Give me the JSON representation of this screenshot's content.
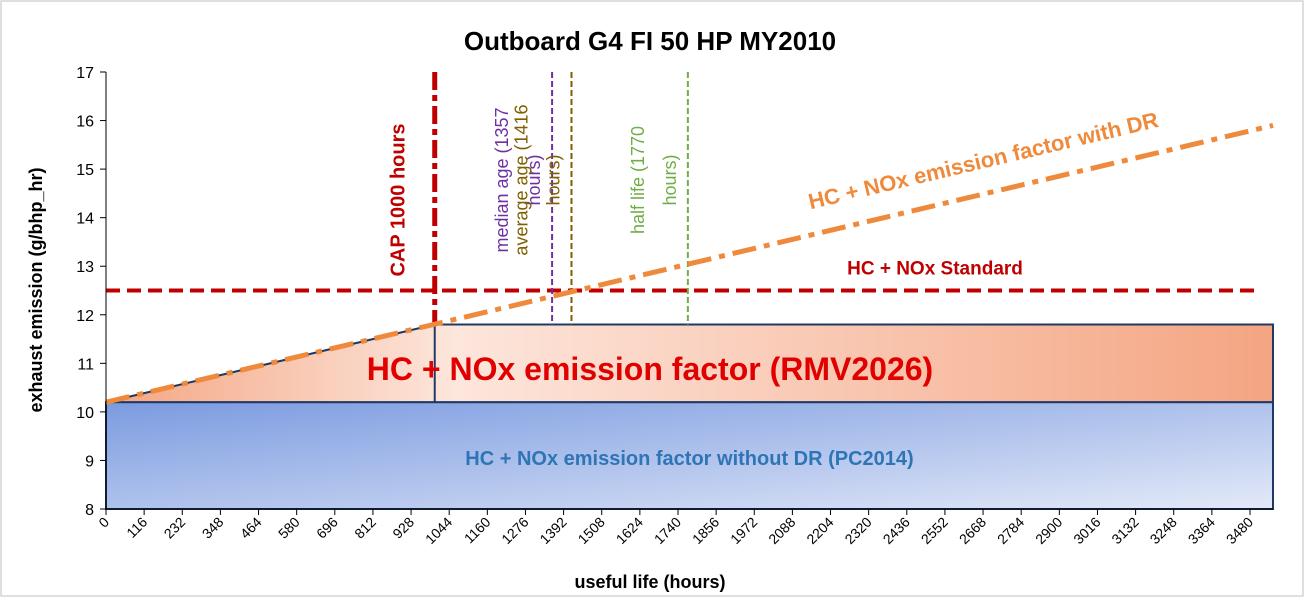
{
  "chart_data": {
    "type": "area",
    "title": "Outboard G4 FI 50 HP MY2010",
    "x_label": "useful life (hours)",
    "y_label": "exhaust emission (g/bhp_hr)",
    "xlim": [
      0,
      3550
    ],
    "ylim": [
      8,
      17
    ],
    "xticks": [
      0,
      116,
      232,
      348,
      464,
      580,
      696,
      812,
      928,
      1044,
      1160,
      1276,
      1392,
      1508,
      1624,
      1740,
      1856,
      1972,
      2088,
      2204,
      2320,
      2436,
      2552,
      2668,
      2784,
      2900,
      3016,
      3132,
      3248,
      3364,
      3480
    ],
    "yticks": [
      8,
      9,
      10,
      11,
      12,
      13,
      14,
      15,
      16,
      17
    ],
    "series": [
      {
        "name": "HC + NOx emission factor without DR (PC2014)",
        "color": "#7b9be0",
        "x": [
          0,
          3550
        ],
        "values": [
          10.2,
          10.2
        ]
      },
      {
        "name": "HC + NOx emission factor (RMV2026)",
        "color": "#f4a582",
        "x": [
          0,
          1000,
          3550
        ],
        "values": [
          10.2,
          11.8,
          11.8
        ]
      },
      {
        "name": "HC + NOx emission factor with DR",
        "color": "#ef8a3c",
        "x": [
          0,
          3550
        ],
        "values": [
          10.2,
          15.9
        ]
      }
    ],
    "standard": {
      "name": "HC + NOx Standard",
      "value": 12.5,
      "color": "#c00000"
    },
    "markers": [
      {
        "lines": [
          "CAP 1000 hours"
        ],
        "value": 1000,
        "color": "#c00000"
      },
      {
        "lines": [
          "median age (1357",
          "hours)"
        ],
        "value": 1357,
        "color": "#7030a0"
      },
      {
        "lines": [
          "average age (1416",
          "hours)"
        ],
        "value": 1416,
        "color": "#7f6000"
      },
      {
        "lines": [
          "half life (1770",
          "hours)"
        ],
        "value": 1770,
        "color": "#70ad47"
      }
    ]
  }
}
